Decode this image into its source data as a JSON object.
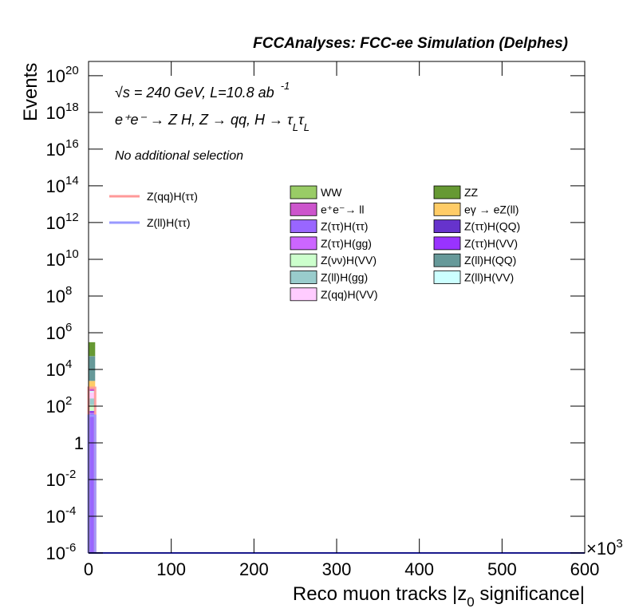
{
  "chart_data": {
    "type": "stacked_histogram",
    "title": "FCCAnalyses: FCC-ee Simulation (Delphes)",
    "y_label": "Events",
    "x_label": "Reco muon tracks |z",
    "x_label_subscript": "0",
    "x_label_end": " significance|",
    "x_multiplier": "×10",
    "x_multiplier_exponent": "3",
    "annotation_energy": "√s = 240 GeV, L=10.8 ab",
    "annotation_energy_exponent": "-1",
    "annotation_process": "e⁺e⁻ → Z H, Z → qq, H → τ",
    "annotation_process_sub1": "L",
    "annotation_process_tau": "τ",
    "annotation_process_sub2": "L",
    "annotation_selection": "No additional selection",
    "log_y": true,
    "xlim": [
      0,
      600
    ],
    "xticks": [
      0,
      100,
      200,
      300,
      400,
      500,
      600
    ],
    "ylim": [
      1e-06,
      6e+20
    ],
    "yticks": [
      {
        "value": 1e-06,
        "label": "10",
        "exponent": "-6"
      },
      {
        "value": 0.0001,
        "label": "10",
        "exponent": "-4"
      },
      {
        "value": 0.01,
        "label": "10",
        "exponent": "-2"
      },
      1,
      {
        "value": 100,
        "label": "10",
        "exponent": "2"
      },
      {
        "value": 10000,
        "label": "10",
        "exponent": "4"
      },
      {
        "value": 1000000,
        "label": "10",
        "exponent": "6"
      },
      {
        "value": 100000000,
        "label": "10",
        "exponent": "8"
      },
      {
        "value": 10000000000,
        "label": "10",
        "exponent": "10"
      },
      {
        "value": 1000000000000,
        "label": "10",
        "exponent": "12"
      },
      {
        "value": 100000000000000,
        "label": "10",
        "exponent": "14"
      },
      {
        "value": 10000000000000000,
        "label": "10",
        "exponent": "16"
      },
      {
        "value": 1000000000000000000,
        "label": "10",
        "exponent": "18"
      },
      {
        "value": 100000000000000000000,
        "label": "10",
        "exponent": "20"
      }
    ],
    "bins": [
      0,
      8
    ],
    "series": [
      {
        "name": "Z(ττ)H(ττ)",
        "color": "#9966ff",
        "stack": true,
        "values": [
          40
        ]
      },
      {
        "name": "Z(ττ)H(gg)",
        "color": "#cc66ff",
        "stack": true,
        "values": [
          5
        ]
      },
      {
        "name": "Z(ττ)H(QQ)",
        "color": "#6633cc",
        "stack": true,
        "values": [
          5
        ]
      },
      {
        "name": "Z(ττ)H(VV)",
        "color": "#9933ff",
        "stack": true,
        "values": [
          5
        ]
      },
      {
        "name": "Z(νν)H(VV)",
        "color": "#ccffcc",
        "stack": true,
        "values": [
          60
        ]
      },
      {
        "name": "Z(ll)H(gg)",
        "color": "#99cccc",
        "stack": true,
        "values": [
          150
        ]
      },
      {
        "name": "Z(qq)H(VV)",
        "color": "#ffccff",
        "stack": true,
        "values": [
          300
        ]
      },
      {
        "name": "Z(ll)H(VV)",
        "color": "#ccffff",
        "stack": true,
        "values": [
          100
        ]
      },
      {
        "name": "e⁺e⁻→ ll",
        "color": "#cc55cc",
        "stack": true,
        "values": [
          200
        ]
      },
      {
        "name": "eγ → eZ(ll)",
        "color": "#ffcc66",
        "stack": true,
        "values": [
          1500
        ]
      },
      {
        "name": "Z(ll)H(QQ)",
        "color": "#669999",
        "stack": true,
        "values": [
          50000
        ]
      },
      {
        "name": "WW",
        "color": "#99cc66",
        "stack": true,
        "values": [
          1000
        ]
      },
      {
        "name": "ZZ",
        "color": "#669933",
        "stack": true,
        "values": [
          250000
        ]
      },
      {
        "name": "Z(qq)H(ττ)",
        "color": "#ff9999",
        "stack": false,
        "values": [
          1000
        ]
      },
      {
        "name": "Z(ll)H(ττ)",
        "color": "#9999ff",
        "stack": false,
        "values": [
          30
        ]
      }
    ]
  }
}
